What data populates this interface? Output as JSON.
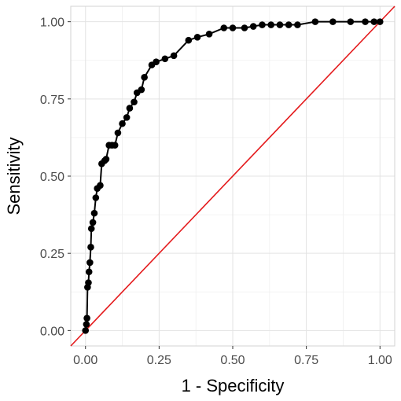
{
  "chart_data": {
    "type": "line",
    "xlabel": "1 - Specificity",
    "ylabel": "Sensitivity",
    "xlim": [
      -0.05,
      1.05
    ],
    "ylim": [
      -0.05,
      1.05
    ],
    "x_ticks": [
      0,
      0.25,
      0.5,
      0.75,
      1
    ],
    "y_ticks": [
      0,
      0.25,
      0.5,
      0.75,
      1
    ],
    "x_tick_labels": [
      "0.00",
      "0.25",
      "0.50",
      "0.75",
      "1.00"
    ],
    "y_tick_labels": [
      "0.00",
      "0.25",
      "0.50",
      "0.75",
      "1.00"
    ],
    "grid": true,
    "series": [
      {
        "color": "#000000",
        "markers": true,
        "x": [
          0,
          0.003,
          0.005,
          0.007,
          0.01,
          0.012,
          0.015,
          0.018,
          0.02,
          0.025,
          0.03,
          0.035,
          0.04,
          0.05,
          0.055,
          0.065,
          0.07,
          0.08,
          0.09,
          0.1,
          0.11,
          0.125,
          0.14,
          0.15,
          0.165,
          0.175,
          0.19,
          0.2,
          0.225,
          0.24,
          0.27,
          0.3,
          0.35,
          0.38,
          0.42,
          0.47,
          0.5,
          0.54,
          0.57,
          0.6,
          0.63,
          0.66,
          0.69,
          0.72,
          0.78,
          0.84,
          0.9,
          0.95,
          0.98,
          1.0
        ],
        "y": [
          0,
          0.02,
          0.04,
          0.14,
          0.155,
          0.19,
          0.22,
          0.27,
          0.33,
          0.35,
          0.38,
          0.43,
          0.46,
          0.47,
          0.54,
          0.55,
          0.555,
          0.6,
          0.6,
          0.6,
          0.64,
          0.67,
          0.69,
          0.72,
          0.74,
          0.77,
          0.78,
          0.82,
          0.86,
          0.87,
          0.88,
          0.89,
          0.94,
          0.95,
          0.96,
          0.98,
          0.98,
          0.98,
          0.985,
          0.99,
          0.99,
          0.99,
          0.99,
          0.99,
          1.0,
          1.0,
          1.0,
          1.0,
          1.0,
          1.0
        ]
      },
      {
        "color": "#e41a1c",
        "markers": false,
        "x": [
          -0.05,
          1.05
        ],
        "y": [
          -0.05,
          1.05
        ]
      }
    ]
  }
}
